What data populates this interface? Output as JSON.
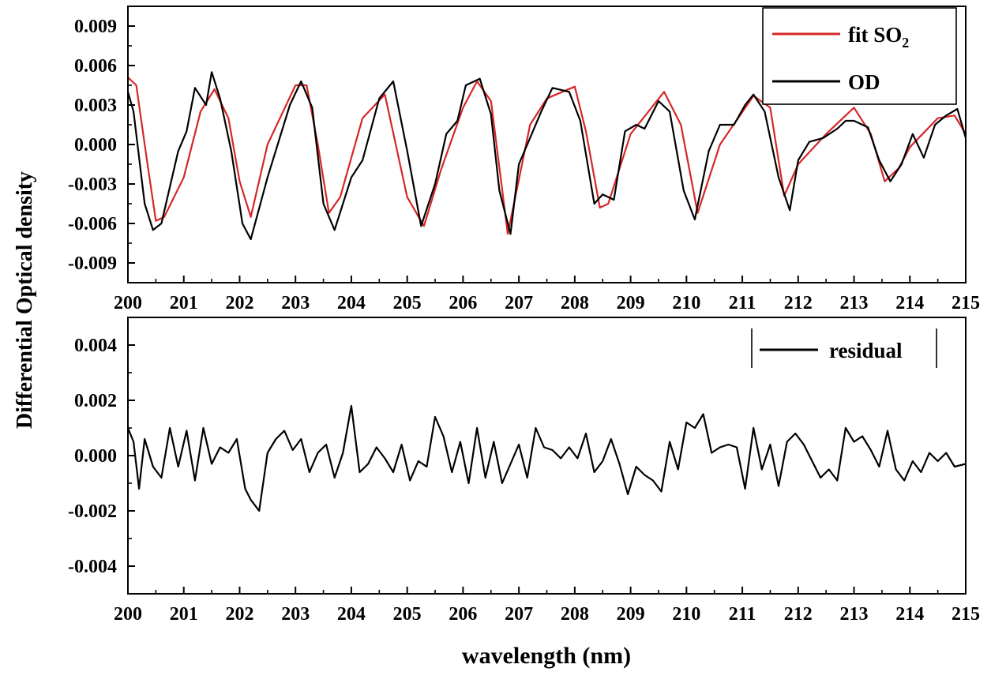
{
  "chart_data": [
    {
      "type": "line",
      "title": "",
      "xlabel": "",
      "ylabel": "Differential Optical density",
      "xlim": [
        200,
        215
      ],
      "ylim": [
        -0.0105,
        0.0105
      ],
      "xticks": [
        200,
        201,
        202,
        203,
        204,
        205,
        206,
        207,
        208,
        209,
        210,
        211,
        212,
        213,
        214,
        215
      ],
      "xtick_labels": [
        "200",
        "201",
        "202",
        "203",
        "204",
        "205",
        "206",
        "207",
        "208",
        "209",
        "210",
        "211",
        "212",
        "213",
        "214",
        "215"
      ],
      "yticks": [
        -0.009,
        -0.006,
        -0.003,
        0.0,
        0.003,
        0.006,
        0.009
      ],
      "ytick_labels": [
        "-0.009",
        "-0.006",
        "-0.003",
        "0.000",
        "0.003",
        "0.006",
        "0.009"
      ],
      "legend": {
        "position": "top-right",
        "entries": [
          {
            "label": "fit SO",
            "subscript": "2",
            "color": "#d62728"
          },
          {
            "label": "OD",
            "subscript": "",
            "color": "#000000"
          }
        ]
      },
      "series": [
        {
          "name": "fit SO2",
          "color": "#d62728",
          "x": [
            200.0,
            200.15,
            200.35,
            200.5,
            200.65,
            201.0,
            201.3,
            201.55,
            201.8,
            202.0,
            202.2,
            202.5,
            203.0,
            203.2,
            203.4,
            203.6,
            203.8,
            204.2,
            204.6,
            205.0,
            205.3,
            205.6,
            206.0,
            206.25,
            206.5,
            206.8,
            207.2,
            207.5,
            208.0,
            208.2,
            208.45,
            208.6,
            209.0,
            209.6,
            209.9,
            210.2,
            210.6,
            211.2,
            211.5,
            211.75,
            212.0,
            212.5,
            213.0,
            213.3,
            213.55,
            213.8,
            214.0,
            214.5,
            214.8,
            215.0
          ],
          "y": [
            0.0051,
            0.0045,
            -0.0015,
            -0.0058,
            -0.0055,
            -0.0025,
            0.0025,
            0.0042,
            0.002,
            -0.0028,
            -0.0055,
            0.0,
            0.0045,
            0.0045,
            0.0,
            -0.0052,
            -0.004,
            0.002,
            0.0038,
            -0.004,
            -0.0062,
            -0.002,
            0.0028,
            0.0048,
            0.0033,
            -0.0068,
            0.0015,
            0.0035,
            0.0044,
            0.001,
            -0.0048,
            -0.0045,
            0.0008,
            0.004,
            0.0015,
            -0.0052,
            0.0,
            0.0037,
            0.0028,
            -0.0039,
            -0.0015,
            0.0008,
            0.0028,
            0.0008,
            -0.0028,
            -0.0018,
            -0.0002,
            0.002,
            0.0022,
            0.0008
          ]
        },
        {
          "name": "OD",
          "color": "#000000",
          "x": [
            200.0,
            200.1,
            200.3,
            200.45,
            200.6,
            200.9,
            201.05,
            201.2,
            201.4,
            201.5,
            201.65,
            201.85,
            202.05,
            202.2,
            202.5,
            202.9,
            203.1,
            203.3,
            203.5,
            203.7,
            203.85,
            204.0,
            204.2,
            204.5,
            204.75,
            205.0,
            205.25,
            205.5,
            205.7,
            205.9,
            206.05,
            206.3,
            206.5,
            206.65,
            206.85,
            207.0,
            207.2,
            207.4,
            207.6,
            207.9,
            208.1,
            208.35,
            208.5,
            208.7,
            208.9,
            209.1,
            209.25,
            209.5,
            209.7,
            209.95,
            210.15,
            210.4,
            210.6,
            210.85,
            211.05,
            211.2,
            211.4,
            211.65,
            211.85,
            212.0,
            212.2,
            212.45,
            212.7,
            212.85,
            213.0,
            213.25,
            213.45,
            213.65,
            213.85,
            214.05,
            214.25,
            214.45,
            214.65,
            214.85,
            215.0
          ],
          "y": [
            0.004,
            0.0025,
            -0.0045,
            -0.0065,
            -0.006,
            -0.0005,
            0.001,
            0.0043,
            0.003,
            0.0055,
            0.0035,
            -0.0005,
            -0.006,
            -0.0072,
            -0.0025,
            0.003,
            0.0048,
            0.0028,
            -0.0045,
            -0.0065,
            -0.0045,
            -0.0025,
            -0.0012,
            0.0035,
            0.0048,
            -0.0005,
            -0.0062,
            -0.003,
            0.0008,
            0.0018,
            0.0045,
            0.005,
            0.0023,
            -0.0035,
            -0.0068,
            -0.0015,
            0.0005,
            0.0025,
            0.0043,
            0.004,
            0.0018,
            -0.0045,
            -0.0038,
            -0.0042,
            0.001,
            0.0015,
            0.0012,
            0.0033,
            0.0025,
            -0.0035,
            -0.0057,
            -0.0005,
            0.0015,
            0.0015,
            0.003,
            0.0038,
            0.0025,
            -0.0025,
            -0.005,
            -0.0012,
            0.0002,
            0.0005,
            0.0012,
            0.0018,
            0.0018,
            0.0013,
            -0.0012,
            -0.0028,
            -0.0015,
            0.0008,
            -0.001,
            0.0015,
            0.0022,
            0.0027,
            0.0005
          ]
        }
      ]
    },
    {
      "type": "line",
      "title": "",
      "xlabel": "wavelength (nm)",
      "ylabel": "Differential Optical density",
      "xlim": [
        200,
        215
      ],
      "ylim": [
        -0.005,
        0.005
      ],
      "xticks": [
        200,
        201,
        202,
        203,
        204,
        205,
        206,
        207,
        208,
        209,
        210,
        211,
        212,
        213,
        214,
        215
      ],
      "xtick_labels": [
        "200",
        "201",
        "202",
        "203",
        "204",
        "205",
        "206",
        "207",
        "208",
        "209",
        "210",
        "211",
        "212",
        "213",
        "214",
        "215"
      ],
      "yticks": [
        -0.004,
        -0.002,
        0.0,
        0.002,
        0.004
      ],
      "ytick_labels": [
        "-0.004",
        "-0.002",
        "0.000",
        "0.002",
        "0.004"
      ],
      "legend": {
        "position": "top-right",
        "entries": [
          {
            "label": "residual",
            "subscript": "",
            "color": "#000000"
          }
        ]
      },
      "series": [
        {
          "name": "residual",
          "color": "#000000",
          "x": [
            200.0,
            200.1,
            200.2,
            200.3,
            200.45,
            200.6,
            200.75,
            200.9,
            201.05,
            201.2,
            201.35,
            201.5,
            201.65,
            201.8,
            201.95,
            202.1,
            202.2,
            202.35,
            202.5,
            202.65,
            202.8,
            202.95,
            203.1,
            203.25,
            203.4,
            203.55,
            203.7,
            203.85,
            204.0,
            204.15,
            204.3,
            204.45,
            204.6,
            204.75,
            204.9,
            205.05,
            205.2,
            205.35,
            205.5,
            205.65,
            205.8,
            205.95,
            206.1,
            206.25,
            206.4,
            206.55,
            206.7,
            206.85,
            207.0,
            207.15,
            207.3,
            207.45,
            207.6,
            207.75,
            207.9,
            208.05,
            208.2,
            208.35,
            208.5,
            208.65,
            208.8,
            208.95,
            209.1,
            209.25,
            209.4,
            209.55,
            209.7,
            209.85,
            210.0,
            210.15,
            210.3,
            210.45,
            210.6,
            210.75,
            210.9,
            211.05,
            211.2,
            211.35,
            211.5,
            211.65,
            211.8,
            211.95,
            212.1,
            212.25,
            212.4,
            212.55,
            212.7,
            212.85,
            213.0,
            213.15,
            213.3,
            213.45,
            213.6,
            213.75,
            213.9,
            214.05,
            214.2,
            214.35,
            214.5,
            214.65,
            214.8,
            215.0
          ],
          "y": [
            0.001,
            0.0005,
            -0.0012,
            0.0006,
            -0.0004,
            -0.0008,
            0.001,
            -0.0004,
            0.0009,
            -0.0009,
            0.001,
            -0.0003,
            0.0003,
            0.0001,
            0.0006,
            -0.0012,
            -0.0016,
            -0.002,
            0.0001,
            0.0006,
            0.0009,
            0.0002,
            0.0006,
            -0.0006,
            0.0001,
            0.0004,
            -0.0008,
            0.0001,
            0.0018,
            -0.0006,
            -0.0003,
            0.0003,
            -0.0001,
            -0.0006,
            0.0004,
            -0.0009,
            -0.0002,
            -0.0004,
            0.0014,
            0.0007,
            -0.0006,
            0.0005,
            -0.001,
            0.001,
            -0.0008,
            0.0005,
            -0.001,
            -0.0003,
            0.0004,
            -0.0008,
            0.001,
            0.0003,
            0.0002,
            -0.0001,
            0.0003,
            -0.0001,
            0.0008,
            -0.0006,
            -0.0002,
            0.0006,
            -0.0003,
            -0.0014,
            -0.0004,
            -0.0007,
            -0.0009,
            -0.0013,
            0.0005,
            -0.0005,
            0.0012,
            0.001,
            0.0015,
            0.0001,
            0.0003,
            0.0004,
            0.0003,
            -0.0012,
            0.001,
            -0.0005,
            0.0004,
            -0.0011,
            0.0005,
            0.0008,
            0.0004,
            -0.0002,
            -0.0008,
            -0.0005,
            -0.0009,
            0.001,
            0.0005,
            0.0007,
            0.0002,
            -0.0004,
            0.0009,
            -0.0005,
            -0.0009,
            -0.0002,
            -0.0006,
            0.0001,
            -0.0002,
            0.0001,
            -0.0004,
            -0.0003
          ]
        }
      ]
    }
  ]
}
